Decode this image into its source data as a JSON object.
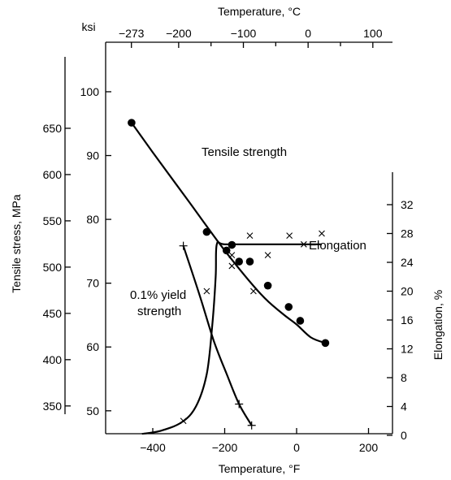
{
  "chart_data": {
    "type": "scatter",
    "title": "",
    "bottom_axis": {
      "label": "Temperature, °F",
      "range": [
        -500,
        250
      ],
      "ticks": [
        -400,
        -200,
        0,
        200
      ],
      "tick_labels": [
        "−400",
        "−200",
        "0",
        "200"
      ]
    },
    "top_axis": {
      "label": "Temperature, °C",
      "ticks": [
        -273,
        -200,
        -150,
        -100,
        -50,
        0,
        50,
        100
      ],
      "tick_labels": [
        "−273",
        "−200",
        "",
        "−100",
        "",
        "0",
        "",
        "100"
      ]
    },
    "left_axis_mpa": {
      "label": "Tensile stress, MPa",
      "range": [
        320,
        690
      ],
      "ticks": [
        350,
        400,
        450,
        500,
        550,
        600,
        650
      ],
      "tick_labels": [
        "350",
        "400",
        "450",
        "500",
        "550",
        "600",
        "650"
      ]
    },
    "left_axis_ksi": {
      "unit_label": "ksi",
      "ticks": [
        50,
        60,
        70,
        80,
        90,
        100
      ],
      "tick_labels": [
        "50",
        "60",
        "70",
        "80",
        "90",
        "100"
      ]
    },
    "right_axis": {
      "label": "Elongation, %",
      "range": [
        0,
        36
      ],
      "ticks": [
        0,
        4,
        8,
        12,
        16,
        20,
        24,
        28,
        32
      ],
      "tick_labels": [
        "0",
        "4",
        "8",
        "12",
        "16",
        "20",
        "24",
        "28",
        "32"
      ]
    },
    "series": [
      {
        "name": "Tensile strength",
        "axis": "mpa",
        "marker": "circle",
        "points": [
          [
            -459,
            656
          ],
          [
            -250,
            538
          ],
          [
            -195,
            518
          ],
          [
            -180,
            524
          ],
          [
            -160,
            506
          ],
          [
            -130,
            506
          ],
          [
            -80,
            480
          ],
          [
            -22,
            457
          ],
          [
            10,
            442
          ],
          [
            80,
            418
          ]
        ],
        "curve": [
          [
            -459,
            656
          ],
          [
            -400,
            624
          ],
          [
            -300,
            571
          ],
          [
            -200,
            518
          ],
          [
            -100,
            471
          ],
          [
            -40,
            450
          ],
          [
            0,
            438
          ],
          [
            40,
            424
          ],
          [
            80,
            418
          ]
        ]
      },
      {
        "name": "0.1% yield strength",
        "label_lines": [
          "0.1% yield",
          "strength"
        ],
        "axis": "mpa",
        "marker": "plus",
        "points": [
          [
            -315,
            523
          ],
          [
            -160,
            352
          ],
          [
            -125,
            329
          ]
        ],
        "curve": [
          [
            -315,
            523
          ],
          [
            -270,
            470
          ],
          [
            -230,
            420
          ],
          [
            -195,
            385
          ],
          [
            -160,
            352
          ],
          [
            -125,
            329
          ]
        ]
      },
      {
        "name": "Elongation",
        "axis": "elongation",
        "marker": "x",
        "points": [
          [
            -315,
            2
          ],
          [
            -250,
            20
          ],
          [
            -180,
            25
          ],
          [
            -180,
            23.5
          ],
          [
            -130,
            27.7
          ],
          [
            -120,
            20
          ],
          [
            -80,
            25
          ],
          [
            -20,
            27.7
          ],
          [
            20,
            26.5
          ],
          [
            70,
            28
          ]
        ],
        "curve": [
          [
            -430,
            0.2
          ],
          [
            -380,
            0.6
          ],
          [
            -320,
            1.8
          ],
          [
            -280,
            4
          ],
          [
            -250,
            8.5
          ],
          [
            -235,
            15
          ],
          [
            -225,
            22
          ],
          [
            -222,
            26.5
          ],
          [
            -200,
            26.5
          ],
          [
            -100,
            26.5
          ],
          [
            0,
            26.5
          ],
          [
            70,
            26.5
          ]
        ]
      }
    ],
    "annotations": {
      "tensile_strength": "Tensile strength",
      "elongation": "Elongation",
      "yield_line1": "0.1% yield",
      "yield_line2": "strength"
    },
    "grid": false,
    "legend": "none"
  }
}
